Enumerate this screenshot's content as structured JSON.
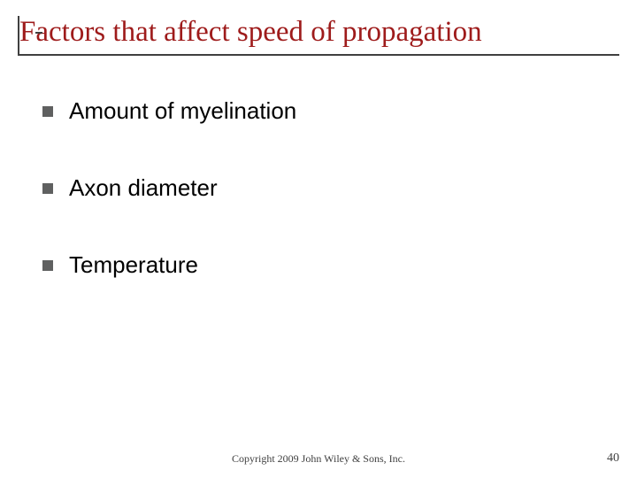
{
  "title": "Factors that affect speed of propagation",
  "title_color": "#9e1b1b",
  "title_fontsize": 33,
  "bullet_color": "#5f6060",
  "bullet_size": 12,
  "items": [
    {
      "text": "Amount of myelination"
    },
    {
      "text": "Axon diameter"
    },
    {
      "text": "Temperature"
    }
  ],
  "item_fontsize": 26,
  "item_color": "#000000",
  "footer": "Copyright 2009 John Wiley & Sons, Inc.",
  "footer_fontsize": 12,
  "slide_number": "40",
  "background_color": "#ffffff",
  "rule_color": "#404040"
}
